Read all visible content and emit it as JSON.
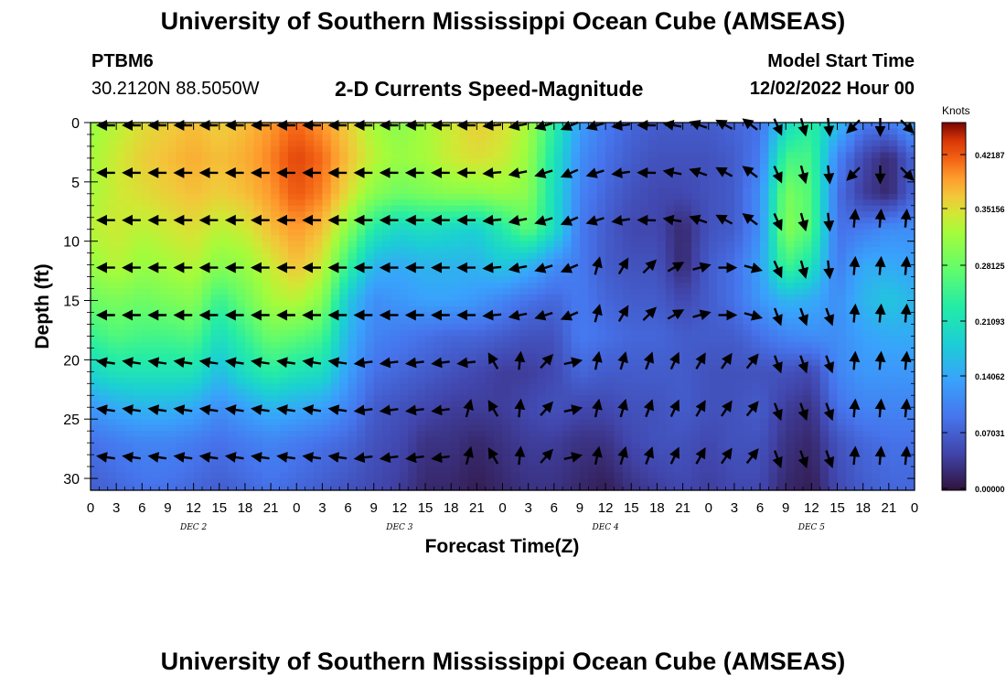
{
  "header": {
    "title": "University of Southern Mississippi Ocean Cube (AMSEAS)",
    "station": "PTBM6",
    "coordinates": "30.2120N  88.5050W",
    "subtitle": "2-D Currents Speed-Magnitude",
    "model_start_label": "Model Start Time",
    "model_start_value": "12/02/2022 Hour 00"
  },
  "footer": {
    "title": "University of Southern Mississippi Ocean Cube (AMSEAS)"
  },
  "chart_data": {
    "type": "heatmap",
    "title": "2-D Currents Speed-Magnitude",
    "xlabel": "Forecast Time(Z)",
    "ylabel": "Depth (ft)",
    "xlim": [
      0,
      96
    ],
    "ylim": [
      31,
      0
    ],
    "x_ticks": [
      0,
      3,
      6,
      9,
      12,
      15,
      18,
      21,
      24,
      27,
      30,
      33,
      36,
      39,
      42,
      45,
      48,
      51,
      54,
      57,
      60,
      63,
      66,
      69,
      72,
      75,
      78,
      81,
      84,
      87,
      90,
      93,
      96
    ],
    "x_tick_labels": [
      "0",
      "3",
      "6",
      "9",
      "12",
      "15",
      "18",
      "21",
      "0",
      "3",
      "6",
      "9",
      "12",
      "15",
      "18",
      "21",
      "0",
      "3",
      "6",
      "9",
      "12",
      "15",
      "18",
      "21",
      "0",
      "3",
      "6",
      "9",
      "12",
      "15",
      "18",
      "21",
      "0"
    ],
    "y_ticks": [
      0,
      5,
      10,
      15,
      20,
      25,
      30
    ],
    "y_tick_labels": [
      "0",
      "5",
      "10",
      "15",
      "20",
      "25",
      "30"
    ],
    "day_labels": [
      {
        "hour": 12,
        "label": "DEC 2"
      },
      {
        "hour": 36,
        "label": "DEC 3"
      },
      {
        "hour": 60,
        "label": "DEC 4"
      },
      {
        "hour": 84,
        "label": "DEC 5"
      }
    ],
    "colorbar": {
      "label": "Knots",
      "ticks": [
        "0.42187",
        "0.35156",
        "0.28125",
        "0.21093",
        "0.14062",
        "0.07031",
        "0.00000"
      ],
      "range": [
        0,
        0.47
      ]
    },
    "vector_times": [
      2,
      5,
      8,
      11,
      14,
      17,
      20,
      23,
      26,
      29,
      32,
      35,
      38,
      41,
      44,
      47,
      50,
      53,
      56,
      59,
      62,
      65,
      68,
      71,
      74,
      77,
      80,
      83,
      86,
      89,
      92,
      95
    ],
    "vector_depths": [
      0,
      4,
      8,
      12,
      16,
      20,
      24,
      28
    ],
    "speed_field": {
      "depths": [
        0,
        3,
        6,
        9,
        12,
        15,
        18,
        21,
        24,
        27,
        31
      ],
      "times": [
        0,
        3,
        6,
        9,
        12,
        15,
        18,
        21,
        24,
        27,
        30,
        33,
        36,
        39,
        42,
        45,
        48,
        51,
        54,
        57,
        60,
        63,
        66,
        69,
        72,
        75,
        78,
        81,
        84,
        87,
        90,
        93,
        96
      ],
      "knots": [
        [
          0.32,
          0.34,
          0.36,
          0.37,
          0.38,
          0.37,
          0.38,
          0.4,
          0.42,
          0.4,
          0.37,
          0.33,
          0.31,
          0.33,
          0.35,
          0.37,
          0.36,
          0.33,
          0.24,
          0.14,
          0.1,
          0.08,
          0.07,
          0.07,
          0.07,
          0.08,
          0.09,
          0.2,
          0.24,
          0.17,
          0.1,
          0.1,
          0.14
        ],
        [
          0.33,
          0.35,
          0.37,
          0.38,
          0.39,
          0.38,
          0.39,
          0.41,
          0.44,
          0.42,
          0.38,
          0.34,
          0.32,
          0.33,
          0.35,
          0.36,
          0.35,
          0.32,
          0.22,
          0.12,
          0.09,
          0.07,
          0.06,
          0.06,
          0.06,
          0.07,
          0.1,
          0.26,
          0.26,
          0.11,
          0.05,
          0.02,
          0.08
        ],
        [
          0.33,
          0.35,
          0.36,
          0.37,
          0.38,
          0.37,
          0.38,
          0.4,
          0.43,
          0.41,
          0.36,
          0.31,
          0.29,
          0.3,
          0.31,
          0.31,
          0.32,
          0.31,
          0.21,
          0.11,
          0.08,
          0.06,
          0.05,
          0.05,
          0.06,
          0.07,
          0.12,
          0.3,
          0.27,
          0.09,
          0.04,
          0.02,
          0.08
        ],
        [
          0.34,
          0.35,
          0.34,
          0.35,
          0.36,
          0.34,
          0.35,
          0.38,
          0.4,
          0.38,
          0.31,
          0.23,
          0.2,
          0.21,
          0.2,
          0.19,
          0.23,
          0.28,
          0.21,
          0.1,
          0.07,
          0.05,
          0.05,
          0.02,
          0.06,
          0.07,
          0.12,
          0.31,
          0.27,
          0.09,
          0.1,
          0.12,
          0.12
        ],
        [
          0.32,
          0.34,
          0.32,
          0.33,
          0.34,
          0.31,
          0.32,
          0.35,
          0.38,
          0.35,
          0.25,
          0.16,
          0.15,
          0.16,
          0.16,
          0.16,
          0.18,
          0.16,
          0.12,
          0.1,
          0.07,
          0.06,
          0.06,
          0.02,
          0.07,
          0.09,
          0.14,
          0.26,
          0.22,
          0.1,
          0.15,
          0.15,
          0.14
        ],
        [
          0.29,
          0.3,
          0.29,
          0.3,
          0.31,
          0.25,
          0.29,
          0.33,
          0.34,
          0.31,
          0.18,
          0.12,
          0.13,
          0.14,
          0.14,
          0.13,
          0.11,
          0.09,
          0.08,
          0.1,
          0.08,
          0.07,
          0.07,
          0.05,
          0.07,
          0.09,
          0.13,
          0.16,
          0.15,
          0.12,
          0.16,
          0.18,
          0.16
        ],
        [
          0.25,
          0.27,
          0.26,
          0.26,
          0.27,
          0.21,
          0.25,
          0.29,
          0.28,
          0.26,
          0.16,
          0.11,
          0.1,
          0.09,
          0.08,
          0.08,
          0.07,
          0.06,
          0.06,
          0.1,
          0.09,
          0.08,
          0.08,
          0.07,
          0.07,
          0.07,
          0.09,
          0.11,
          0.12,
          0.12,
          0.14,
          0.15,
          0.15
        ],
        [
          0.2,
          0.22,
          0.22,
          0.22,
          0.22,
          0.17,
          0.21,
          0.24,
          0.22,
          0.21,
          0.14,
          0.09,
          0.08,
          0.07,
          0.06,
          0.05,
          0.04,
          0.04,
          0.05,
          0.08,
          0.07,
          0.07,
          0.07,
          0.07,
          0.06,
          0.06,
          0.06,
          0.06,
          0.05,
          0.11,
          0.13,
          0.13,
          0.13
        ],
        [
          0.13,
          0.15,
          0.16,
          0.16,
          0.15,
          0.12,
          0.14,
          0.16,
          0.15,
          0.14,
          0.11,
          0.07,
          0.06,
          0.05,
          0.04,
          0.04,
          0.04,
          0.05,
          0.06,
          0.05,
          0.05,
          0.06,
          0.06,
          0.07,
          0.06,
          0.06,
          0.07,
          0.04,
          0.03,
          0.09,
          0.11,
          0.11,
          0.11
        ],
        [
          0.09,
          0.1,
          0.11,
          0.11,
          0.1,
          0.09,
          0.1,
          0.11,
          0.1,
          0.09,
          0.08,
          0.06,
          0.05,
          0.03,
          0.03,
          0.02,
          0.03,
          0.04,
          0.04,
          0.03,
          0.03,
          0.05,
          0.06,
          0.06,
          0.05,
          0.06,
          0.06,
          0.03,
          0.02,
          0.06,
          0.08,
          0.09,
          0.09
        ],
        [
          0.07,
          0.08,
          0.09,
          0.09,
          0.08,
          0.07,
          0.08,
          0.09,
          0.08,
          0.07,
          0.06,
          0.05,
          0.04,
          0.02,
          0.02,
          0.01,
          0.02,
          0.03,
          0.03,
          0.02,
          0.01,
          0.03,
          0.04,
          0.05,
          0.04,
          0.05,
          0.05,
          0.02,
          0.01,
          0.05,
          0.07,
          0.08,
          0.08
        ]
      ]
    }
  }
}
